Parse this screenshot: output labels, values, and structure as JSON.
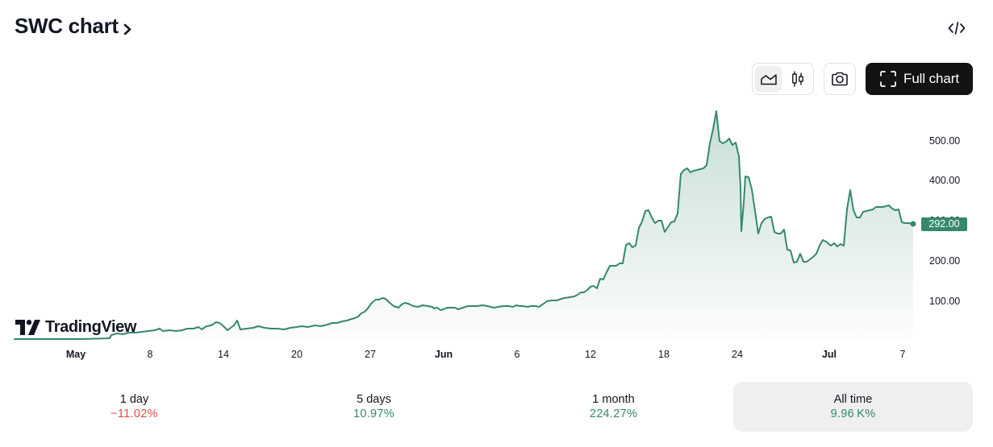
{
  "header": {
    "title": "SWC chart",
    "embed_icon": "code-embed-icon"
  },
  "toolbar": {
    "chart_styles": [
      {
        "name": "area",
        "icon": "area-chart-icon",
        "active": true
      },
      {
        "name": "candles",
        "icon": "candlestick-icon",
        "active": false
      }
    ],
    "snapshot_icon": "camera-icon",
    "full_chart_label": "Full chart",
    "full_chart_icon": "fullscreen-icon"
  },
  "chart": {
    "last_price": "292.00",
    "y_ticks": [
      "500.00",
      "400.00",
      "300.00",
      "200.00",
      "100.00"
    ],
    "x_ticks": [
      {
        "label": "May",
        "bold": true
      },
      {
        "label": "8",
        "bold": false
      },
      {
        "label": "14",
        "bold": false
      },
      {
        "label": "20",
        "bold": false
      },
      {
        "label": "27",
        "bold": false
      },
      {
        "label": "Jun",
        "bold": true
      },
      {
        "label": "6",
        "bold": false
      },
      {
        "label": "12",
        "bold": false
      },
      {
        "label": "18",
        "bold": false
      },
      {
        "label": "24",
        "bold": false
      },
      {
        "label": "Jul",
        "bold": true
      },
      {
        "label": "7",
        "bold": false
      }
    ],
    "watermark": "TradingView",
    "line_color": "#35886d"
  },
  "periods": [
    {
      "label": "1 day",
      "value": "−11.02%",
      "direction": "negative",
      "active": false
    },
    {
      "label": "5 days",
      "value": "10.97%",
      "direction": "positive",
      "active": false
    },
    {
      "label": "1 month",
      "value": "224.27%",
      "direction": "positive",
      "active": false
    },
    {
      "label": "All time",
      "value": "9.96 K%",
      "direction": "positive",
      "active": true
    }
  ],
  "chart_data": {
    "type": "area",
    "title": "SWC chart",
    "xlabel": "",
    "ylabel": "",
    "ylim": [
      0,
      580
    ],
    "grid": false,
    "legend": "none",
    "x_tick_labels": [
      "May",
      "8",
      "14",
      "20",
      "27",
      "Jun",
      "6",
      "12",
      "18",
      "24",
      "Jul",
      "7"
    ],
    "y_tick_labels": [
      "100.00",
      "200.00",
      "300.00",
      "400.00",
      "500.00"
    ],
    "last_value": 292.0,
    "series": [
      {
        "name": "SWC",
        "x": [
          "Apr 24",
          "Apr 28",
          "May 1",
          "May 4",
          "May 6",
          "May 8",
          "May 10",
          "May 12",
          "May 13",
          "May 14",
          "May 15",
          "May 17",
          "May 20",
          "May 22",
          "May 24",
          "May 26",
          "May 27",
          "May 28",
          "May 29",
          "May 30",
          "May 31",
          "Jun 1",
          "Jun 3",
          "Jun 5",
          "Jun 6",
          "Jun 8",
          "Jun 9",
          "Jun 10",
          "Jun 11",
          "Jun 12",
          "Jun 13",
          "Jun 14",
          "Jun 15",
          "Jun 16",
          "Jun 17",
          "Jun 18",
          "Jun 19",
          "Jun 20",
          "Jun 21",
          "Jun 22",
          "Jun 23",
          "Jun 24",
          "Jun 25",
          "Jun 26",
          "Jun 27",
          "Jun 28",
          "Jun 29",
          "Jun 30",
          "Jul 1",
          "Jul 2",
          "Jul 3",
          "Jul 4",
          "Jul 5",
          "Jul 6",
          "Jul 7",
          "Jul 8"
        ],
        "values": [
          2,
          3,
          15,
          18,
          20,
          25,
          35,
          45,
          25,
          48,
          30,
          30,
          35,
          45,
          60,
          75,
          100,
          105,
          85,
          90,
          80,
          85,
          85,
          83,
          88,
          100,
          110,
          120,
          135,
          160,
          200,
          250,
          320,
          310,
          300,
          420,
          430,
          470,
          580,
          480,
          490,
          470,
          280,
          420,
          300,
          270,
          250,
          190,
          200,
          250,
          240,
          360,
          300,
          330,
          330,
          292
        ]
      }
    ]
  }
}
